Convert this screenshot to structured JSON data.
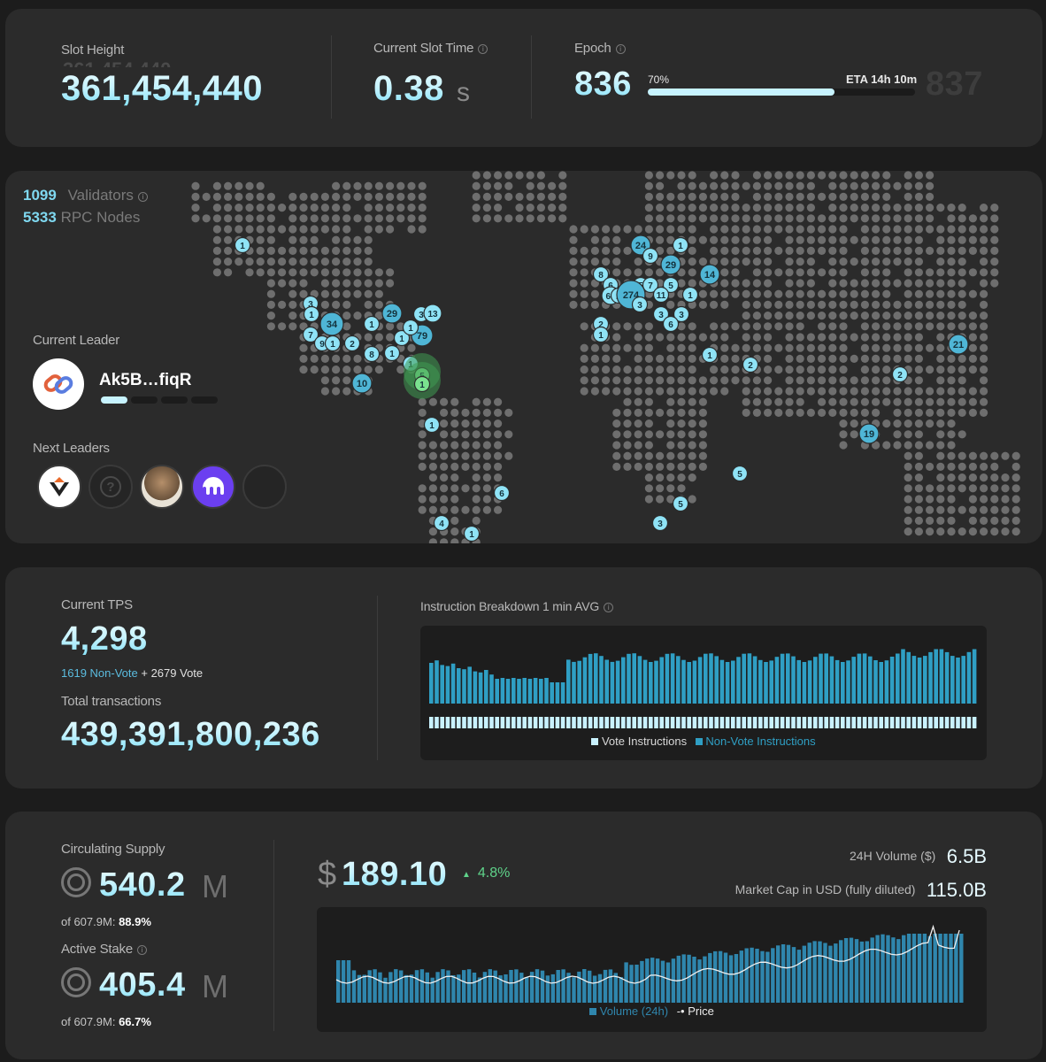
{
  "stats": {
    "slot_height": {
      "label": "Slot Height",
      "value": "361,454,440"
    },
    "slot_time": {
      "label": "Current Slot Time",
      "value": "0.38",
      "unit": "s"
    },
    "epoch": {
      "label": "Epoch",
      "current": "836",
      "next": "837",
      "progress_text": "70%",
      "progress": 0.7,
      "eta": "ETA 14h 10m"
    }
  },
  "network": {
    "validators_count": "1099",
    "validators_label": "Validators",
    "rpc_count": "5333",
    "rpc_label": "RPC Nodes",
    "current_leader_label": "Current Leader",
    "current_leader": "Ak5B…fiqR",
    "next_leaders_label": "Next Leaders",
    "map_markers": [
      "1",
      "3",
      "1",
      "34",
      "29",
      "3",
      "13",
      "7",
      "9",
      "1",
      "2",
      "1",
      "1",
      "79",
      "8",
      "1",
      "1",
      "10",
      "1",
      "5",
      "1",
      "1",
      "24",
      "1",
      "9",
      "29",
      "8",
      "6",
      "5",
      "14",
      "7",
      "69",
      "5",
      "2",
      "274",
      "11",
      "1",
      "3",
      "3",
      "3",
      "6",
      "2",
      "1",
      "1",
      "2",
      "21",
      "2",
      "19",
      "5",
      "6",
      "4",
      "1",
      "5",
      "3"
    ]
  },
  "tps": {
    "current_label": "Current TPS",
    "current_value": "4,298",
    "nonvote": "1619 Non-Vote",
    "plus": "+",
    "vote": "2679 Vote",
    "total_label": "Total transactions",
    "total_value": "439,391,800,236",
    "breakdown_title": "Instruction Breakdown 1 min AVG",
    "legend_vote": "Vote Instructions",
    "legend_nonvote": "Non-Vote Instructions"
  },
  "supply": {
    "circulating_label": "Circulating Supply",
    "circulating_value": "540.2",
    "circulating_unit": "M",
    "circulating_of": "of 607.9M:",
    "circulating_pct": "88.9%",
    "stake_label": "Active Stake",
    "stake_value": "405.4",
    "stake_unit": "M",
    "stake_of": "of 607.9M:",
    "stake_pct": "66.7%"
  },
  "price": {
    "currency": "$",
    "value": "189.10",
    "change": "4.8%",
    "volume_label": "24H Volume ($)",
    "volume_value": "6.5B",
    "mcap_label": "Market Cap in USD (fully diluted)",
    "mcap_value": "115.0B",
    "legend_volume": "Volume (24h)",
    "legend_price": "Price"
  },
  "colors": {
    "accent": "#7fd8f0",
    "bar": "#2f9fc4",
    "up": "#5fd38a",
    "card": "#2b2b2b"
  }
}
